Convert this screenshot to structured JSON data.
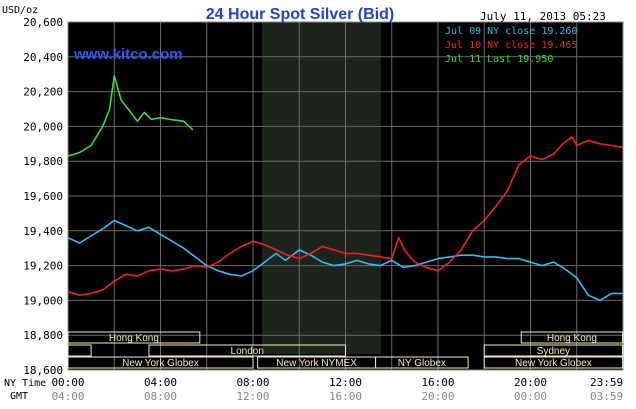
{
  "header": {
    "title": "24 Hour Spot Silver (Bid)",
    "timestamp": "July 11, 2013 05:23",
    "unit_label": "USD/oz",
    "watermark": "www.kitco.com"
  },
  "legend": [
    {
      "label": "Jul 09 NY close 19.260",
      "color": "#33bbee"
    },
    {
      "label": "Jul 10 NY close 19.465",
      "color": "#ee2222"
    },
    {
      "label": "Jul 11 Last 19.950",
      "color": "#33dd33"
    }
  ],
  "axis": {
    "y_ticks": [
      "20,600",
      "20,400",
      "20,200",
      "20,000",
      "19,800",
      "19,600",
      "19,400",
      "19,200",
      "19,000",
      "18,800",
      "18,600"
    ],
    "x_ticks_ny": [
      "00:00",
      "04:00",
      "08:00",
      "12:00",
      "16:00",
      "20:00",
      "23:59"
    ],
    "x_ticks_gmt": [
      "04:00",
      "08:00",
      "12:00",
      "16:00",
      "20:00",
      "00:00",
      "03:59"
    ],
    "ny_time_label": "NY Time",
    "gmt_label": "GMT"
  },
  "markets": {
    "hong_kong_1": "Hong Kong",
    "london": "London",
    "ny_globex_1": "New York Globex",
    "ny_nymex": "New York NYMEX",
    "ny_globex_short": "NY Globex",
    "hong_kong_2": "Hong Kong",
    "sydney": "Sydney",
    "ny_globex_2": "New York Globex"
  },
  "colors": {
    "background": "#000000",
    "grid": "#6a6a6a",
    "highlight": "#1c241c",
    "market_bar": "#f2eac0",
    "title": "#2244cc"
  },
  "chart_data": {
    "type": "line",
    "title": "24 Hour Spot Silver (Bid)",
    "ylabel": "USD/oz",
    "xlabel": "NY Time",
    "xlim": [
      0,
      24
    ],
    "ylim": [
      18600,
      20600
    ],
    "grid": true,
    "legend_position": "top-right",
    "series": [
      {
        "name": "Jul 09 NY close 19.260",
        "color": "#33bbee",
        "points": [
          [
            0.0,
            19360
          ],
          [
            0.5,
            19330
          ],
          [
            1.0,
            19370
          ],
          [
            1.6,
            19420
          ],
          [
            2.0,
            19460
          ],
          [
            2.5,
            19430
          ],
          [
            3.0,
            19400
          ],
          [
            3.5,
            19420
          ],
          [
            4.0,
            19380
          ],
          [
            4.5,
            19340
          ],
          [
            5.0,
            19300
          ],
          [
            5.5,
            19250
          ],
          [
            6.0,
            19200
          ],
          [
            6.5,
            19170
          ],
          [
            7.0,
            19150
          ],
          [
            7.5,
            19140
          ],
          [
            8.0,
            19170
          ],
          [
            8.5,
            19220
          ],
          [
            9.0,
            19270
          ],
          [
            9.4,
            19230
          ],
          [
            10.0,
            19290
          ],
          [
            10.5,
            19260
          ],
          [
            11.0,
            19220
          ],
          [
            11.5,
            19200
          ],
          [
            12.0,
            19210
          ],
          [
            12.5,
            19230
          ],
          [
            13.0,
            19210
          ],
          [
            13.5,
            19200
          ],
          [
            14.0,
            19230
          ],
          [
            14.5,
            19190
          ],
          [
            15.0,
            19200
          ],
          [
            15.5,
            19220
          ],
          [
            16.0,
            19240
          ],
          [
            16.5,
            19250
          ],
          [
            17.0,
            19260
          ],
          [
            17.5,
            19260
          ],
          [
            18.0,
            19250
          ],
          [
            18.5,
            19250
          ],
          [
            19.0,
            19240
          ],
          [
            19.5,
            19240
          ],
          [
            20.0,
            19220
          ],
          [
            20.5,
            19200
          ],
          [
            21.0,
            19220
          ],
          [
            21.5,
            19180
          ],
          [
            22.0,
            19130
          ],
          [
            22.5,
            19030
          ],
          [
            23.0,
            19000
          ],
          [
            23.5,
            19040
          ],
          [
            23.98,
            19040
          ]
        ]
      },
      {
        "name": "Jul 10 NY close 19.465",
        "color": "#ee2222",
        "points": [
          [
            0.0,
            19050
          ],
          [
            0.5,
            19030
          ],
          [
            1.0,
            19040
          ],
          [
            1.5,
            19060
          ],
          [
            2.0,
            19110
          ],
          [
            2.5,
            19150
          ],
          [
            3.0,
            19140
          ],
          [
            3.5,
            19170
          ],
          [
            4.0,
            19180
          ],
          [
            4.5,
            19170
          ],
          [
            5.0,
            19180
          ],
          [
            5.5,
            19200
          ],
          [
            6.0,
            19190
          ],
          [
            6.5,
            19220
          ],
          [
            7.0,
            19270
          ],
          [
            7.5,
            19310
          ],
          [
            8.0,
            19340
          ],
          [
            8.5,
            19320
          ],
          [
            9.0,
            19290
          ],
          [
            9.5,
            19260
          ],
          [
            10.0,
            19240
          ],
          [
            10.5,
            19270
          ],
          [
            11.0,
            19310
          ],
          [
            11.5,
            19290
          ],
          [
            12.0,
            19270
          ],
          [
            12.5,
            19270
          ],
          [
            13.0,
            19260
          ],
          [
            13.5,
            19250
          ],
          [
            14.0,
            19240
          ],
          [
            14.3,
            19360
          ],
          [
            14.6,
            19280
          ],
          [
            15.0,
            19220
          ],
          [
            15.5,
            19190
          ],
          [
            16.0,
            19170
          ],
          [
            16.5,
            19220
          ],
          [
            17.0,
            19290
          ],
          [
            17.5,
            19400
          ],
          [
            18.0,
            19460
          ],
          [
            18.5,
            19540
          ],
          [
            19.0,
            19630
          ],
          [
            19.5,
            19780
          ],
          [
            20.0,
            19830
          ],
          [
            20.5,
            19810
          ],
          [
            21.0,
            19840
          ],
          [
            21.4,
            19900
          ],
          [
            21.8,
            19940
          ],
          [
            22.0,
            19890
          ],
          [
            22.5,
            19920
          ],
          [
            23.0,
            19900
          ],
          [
            23.5,
            19890
          ],
          [
            23.98,
            19880
          ]
        ]
      },
      {
        "name": "Jul 11 Last 19.950",
        "color": "#33dd33",
        "points": [
          [
            0.0,
            19830
          ],
          [
            0.5,
            19850
          ],
          [
            1.0,
            19890
          ],
          [
            1.5,
            20000
          ],
          [
            1.8,
            20100
          ],
          [
            2.0,
            20290
          ],
          [
            2.3,
            20150
          ],
          [
            2.6,
            20100
          ],
          [
            3.0,
            20030
          ],
          [
            3.3,
            20080
          ],
          [
            3.6,
            20040
          ],
          [
            4.0,
            20050
          ],
          [
            4.4,
            20040
          ],
          [
            5.0,
            20030
          ],
          [
            5.4,
            19980
          ]
        ]
      }
    ]
  }
}
